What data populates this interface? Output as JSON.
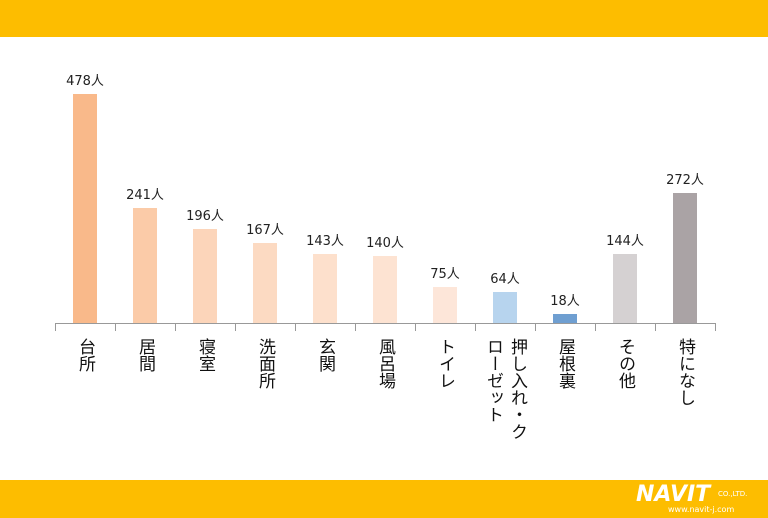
{
  "chart_data": {
    "type": "bar",
    "categories": [
      "台所",
      "居間",
      "寝室",
      "洗面所",
      "玄関",
      "風呂場",
      "トイレ",
      "押し入れ・クローゼット",
      "屋根裏",
      "その他",
      "特になし"
    ],
    "values": [
      478,
      241,
      196,
      167,
      143,
      140,
      75,
      64,
      18,
      144,
      272
    ],
    "value_labels": [
      "478人",
      "241人",
      "196人",
      "167人",
      "143人",
      "140人",
      "75人",
      "64人",
      "18人",
      "144人",
      "272人"
    ],
    "colors": [
      "#f9b98a",
      "#fbcba8",
      "#fcd5ba",
      "#fcdac2",
      "#fde0cc",
      "#fde3d2",
      "#fde6d9",
      "#b7d4ee",
      "#6f9fd1",
      "#d5d1d2",
      "#aaa3a5"
    ]
  },
  "footer": {
    "logo": "NAVIT",
    "company": "CO.,LTD.",
    "url": "www.navit-j.com"
  }
}
